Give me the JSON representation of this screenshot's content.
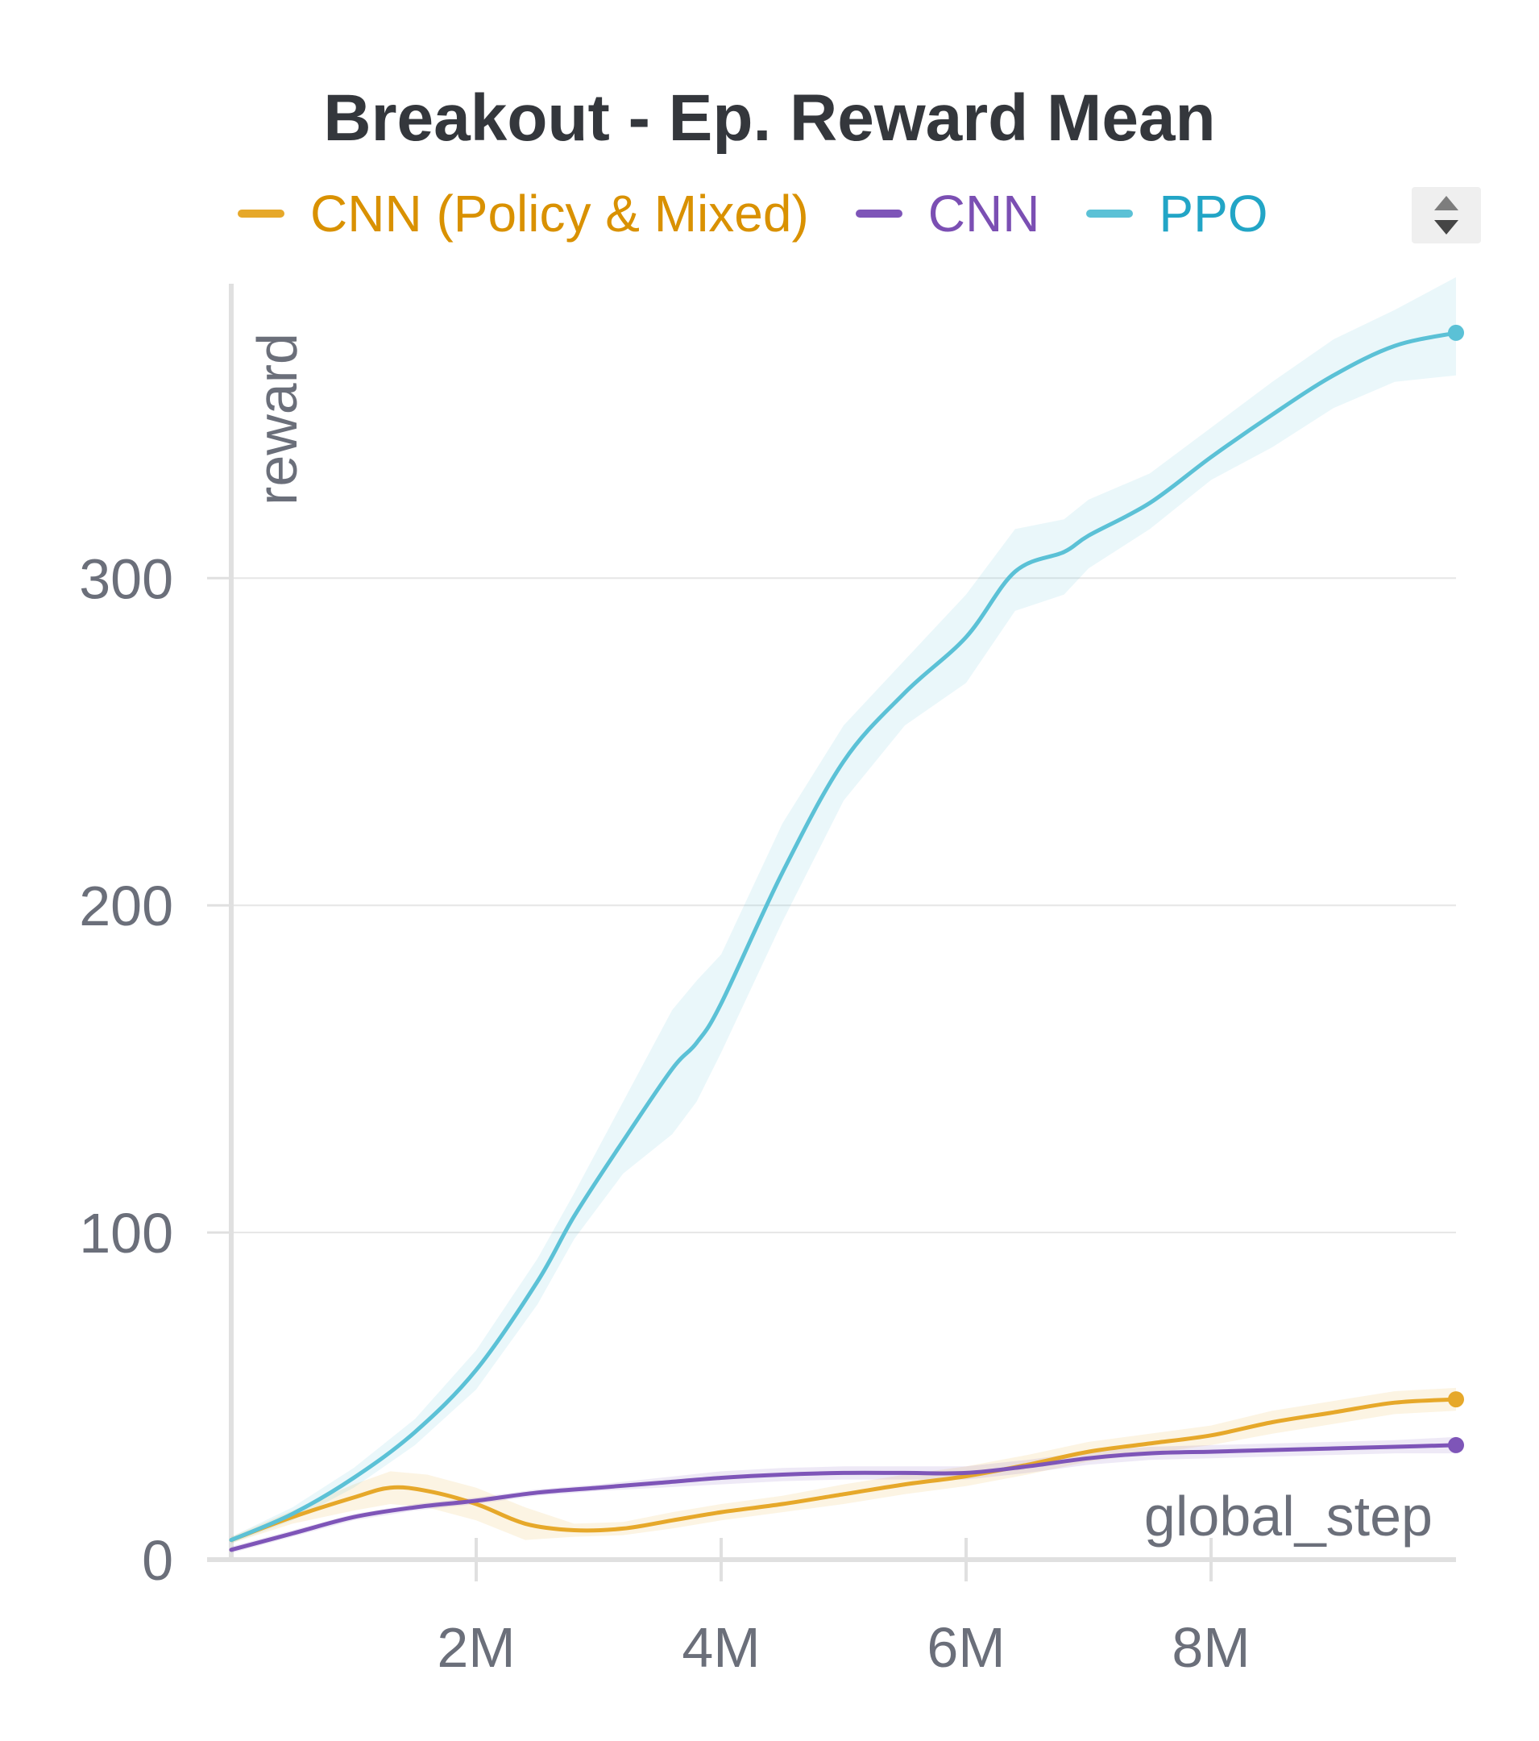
{
  "chart_data": {
    "type": "line",
    "title": "Breakout - Ep. Reward Mean",
    "xlabel": "global_step",
    "ylabel": "reward",
    "xlim": [
      0,
      10000000
    ],
    "ylim": [
      0,
      390
    ],
    "x_ticks": [
      2000000,
      4000000,
      6000000,
      8000000
    ],
    "x_tick_labels": [
      "2M",
      "4M",
      "6M",
      "8M"
    ],
    "y_ticks": [
      0,
      100,
      200,
      300
    ],
    "y_tick_labels": [
      "0",
      "100",
      "200",
      "300"
    ],
    "grid": true,
    "legend_position": "top",
    "series": [
      {
        "name": "CNN (Policy & Mixed)",
        "color": "#e6a82a",
        "label_color": "#d99100",
        "x": [
          0,
          500000,
          1000000,
          1300000,
          1600000,
          2000000,
          2400000,
          2800000,
          3200000,
          3600000,
          4000000,
          4500000,
          5000000,
          5500000,
          6000000,
          6500000,
          7000000,
          7500000,
          8000000,
          8500000,
          9000000,
          9500000,
          10000000
        ],
        "y": [
          6,
          13,
          19,
          22,
          21,
          17,
          11,
          9,
          9.5,
          12,
          14.5,
          17,
          20,
          23,
          25.5,
          29,
          33,
          35.5,
          38,
          42,
          45,
          48,
          49
        ],
        "band_lower": [
          5,
          11,
          15,
          17,
          16,
          12,
          6,
          7,
          7.5,
          9.5,
          12,
          14.5,
          17,
          20,
          22.5,
          26,
          30,
          32.5,
          35,
          38.5,
          41.5,
          44.5,
          45.5
        ],
        "band_upper": [
          7,
          15,
          23,
          27,
          26,
          22,
          16,
          11,
          11.5,
          14.5,
          17,
          19.5,
          23,
          26,
          28.5,
          32,
          36,
          38.5,
          41,
          45.5,
          48.5,
          51.5,
          52.5
        ]
      },
      {
        "name": "CNN",
        "color": "#7e55b8",
        "label_color": "#7b4fb3",
        "x": [
          0,
          500000,
          1000000,
          1500000,
          2000000,
          2500000,
          3000000,
          3500000,
          4000000,
          4500000,
          5000000,
          5500000,
          6000000,
          6500000,
          7000000,
          7500000,
          8000000,
          8500000,
          9000000,
          9500000,
          10000000
        ],
        "y": [
          3,
          8,
          13,
          16,
          18,
          20.5,
          22,
          23.5,
          25,
          26,
          26.5,
          26.5,
          26.5,
          28.5,
          31,
          32.5,
          33,
          33.5,
          34,
          34.5,
          35
        ],
        "band_lower": [
          2,
          7,
          12,
          15,
          17,
          19.5,
          21,
          22,
          23,
          24,
          24.5,
          24.5,
          24.5,
          26.5,
          29,
          30.5,
          31,
          31.5,
          32,
          32.5,
          32.5
        ],
        "band_upper": [
          4,
          9,
          14,
          17,
          19,
          21.5,
          23,
          25,
          27,
          28,
          28.5,
          28.5,
          28.5,
          30.5,
          33,
          34.5,
          35,
          35.5,
          36,
          36.5,
          37.5
        ]
      },
      {
        "name": "PPO",
        "color": "#5bc1d6",
        "label_color": "#22a5c6",
        "x": [
          0,
          500000,
          1000000,
          1500000,
          2000000,
          2500000,
          2800000,
          3200000,
          3600000,
          3800000,
          4000000,
          4500000,
          5000000,
          5500000,
          6000000,
          6400000,
          6800000,
          7000000,
          7500000,
          8000000,
          8500000,
          9000000,
          9500000,
          10000000
        ],
        "y": [
          6,
          14,
          25,
          39,
          58,
          85,
          105,
          128,
          150,
          158,
          170,
          210,
          244,
          265,
          282,
          302,
          308,
          313,
          323,
          337,
          350,
          362,
          371,
          375
        ],
        "band_lower": [
          5,
          12,
          22,
          35,
          52,
          78,
          98,
          118,
          130,
          140,
          155,
          195,
          232,
          255,
          268,
          290,
          295,
          303,
          315,
          330,
          340,
          352,
          360,
          362
        ],
        "band_upper": [
          7,
          16,
          28,
          43,
          64,
          92,
          112,
          140,
          168,
          177,
          185,
          225,
          255,
          275,
          295,
          315,
          318,
          324,
          332,
          346,
          360,
          373,
          382,
          392
        ]
      }
    ]
  },
  "ui": {
    "sort_button_icon": "sort-updown-icon"
  }
}
